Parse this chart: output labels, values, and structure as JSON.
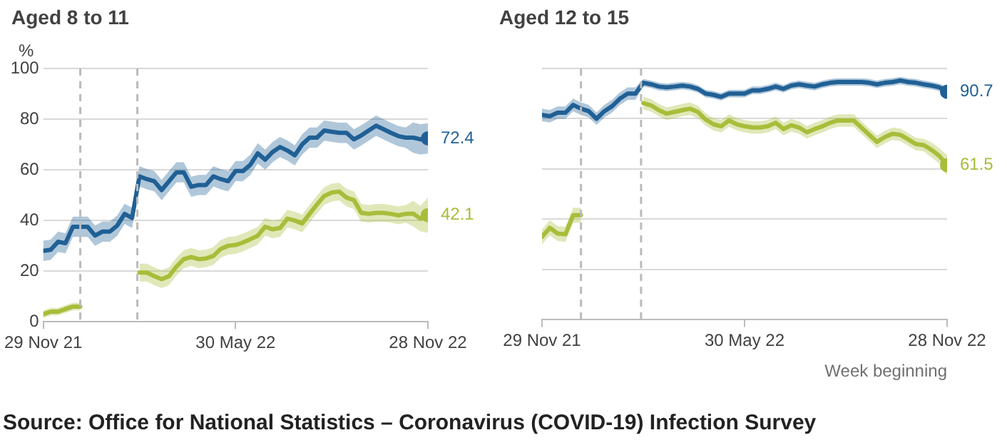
{
  "chart_data": [
    {
      "type": "line",
      "title": "Aged 8 to 11",
      "ylabel": "%",
      "grid": "y",
      "ylim": [
        0,
        100
      ],
      "yticks": [
        0,
        20,
        40,
        60,
        80,
        100
      ],
      "xlim": [
        "2021-11-29",
        "2022-11-28"
      ],
      "xticks": [
        {
          "value": "2021-11-29",
          "label": "29 Nov 21"
        },
        {
          "value": "2022-05-30",
          "label": "30 May 22"
        },
        {
          "value": "2022-11-28",
          "label": "28 Nov 22"
        }
      ],
      "x": [
        "2021-11-29",
        "2021-12-06",
        "2021-12-13",
        "2021-12-20",
        "2021-12-27",
        "2022-01-03",
        "2022-01-10",
        "2022-01-17",
        "2022-01-24",
        "2022-01-31",
        "2022-02-07",
        "2022-02-14",
        "2022-02-21",
        "2022-02-28",
        "2022-03-07",
        "2022-03-14",
        "2022-03-21",
        "2022-03-28",
        "2022-04-04",
        "2022-04-11",
        "2022-04-18",
        "2022-04-25",
        "2022-05-02",
        "2022-05-09",
        "2022-05-16",
        "2022-05-23",
        "2022-05-30",
        "2022-06-06",
        "2022-06-13",
        "2022-06-20",
        "2022-06-27",
        "2022-07-04",
        "2022-07-11",
        "2022-07-18",
        "2022-07-25",
        "2022-08-01",
        "2022-08-08",
        "2022-08-15",
        "2022-08-22",
        "2022-08-29",
        "2022-09-05",
        "2022-09-12",
        "2022-09-19",
        "2022-09-26",
        "2022-10-03",
        "2022-10-10",
        "2022-10-17",
        "2022-10-24",
        "2022-10-31",
        "2022-11-07",
        "2022-11-14",
        "2022-11-21",
        "2022-11-28"
      ],
      "series": [
        {
          "color": "#206095",
          "values": [
            28,
            28.4,
            31.6,
            31,
            37.5,
            37.5,
            37.5,
            34,
            35.6,
            35.6,
            38,
            42.6,
            41,
            57.4,
            56.3,
            55.5,
            52,
            55.5,
            59,
            59,
            53.3,
            54,
            54,
            57.4,
            56.3,
            55.5,
            59.5,
            59.5,
            62,
            66.5,
            64,
            67,
            69,
            67.6,
            65.7,
            70,
            72.7,
            72.7,
            75.5,
            75,
            74.6,
            74.6,
            72,
            73.6,
            75.5,
            77.4,
            76,
            74.6,
            73.3,
            72.7,
            72.7,
            72,
            72.4
          ],
          "lower": [
            24,
            24.4,
            27.6,
            27,
            33.5,
            33.5,
            33.5,
            30,
            31.6,
            31.6,
            34,
            38.6,
            37,
            53.4,
            52.3,
            51.5,
            48,
            51.5,
            55,
            55,
            49.3,
            50,
            50,
            53.4,
            52.3,
            51.5,
            55.5,
            55.5,
            58,
            62.5,
            60,
            63,
            65,
            63.6,
            61.7,
            66,
            68.7,
            68.7,
            71.5,
            71,
            70.6,
            70.6,
            68,
            69.6,
            71.5,
            73.4,
            72,
            70.6,
            69.3,
            68.7,
            66.7,
            66,
            66.4
          ],
          "upper": [
            32,
            32.4,
            35.6,
            35,
            41.5,
            41.5,
            41.5,
            38,
            39.6,
            39.6,
            42,
            46.6,
            45,
            61.4,
            60.3,
            59.5,
            56,
            59.5,
            63,
            63,
            57.3,
            58,
            58,
            61.4,
            60.3,
            59.5,
            63.5,
            63.5,
            66,
            70.5,
            68,
            71,
            73,
            71.6,
            69.7,
            74,
            76.7,
            76.7,
            79.5,
            79,
            78.6,
            78.6,
            76,
            77.6,
            79.5,
            81.4,
            80,
            78.6,
            77.3,
            76.7,
            78.7,
            78,
            78.4
          ]
        },
        {
          "color": "#a8bd3a",
          "values": [
            3,
            4,
            4,
            5,
            6,
            6,
            null,
            null,
            null,
            null,
            null,
            null,
            null,
            19.4,
            19.4,
            18,
            16.8,
            18,
            21.8,
            24.7,
            25.6,
            24.7,
            25,
            26,
            28.8,
            30,
            30.3,
            31.3,
            32.6,
            34,
            37.5,
            36.5,
            37,
            40.7,
            40,
            38.8,
            42.6,
            46.3,
            49.7,
            51,
            51.4,
            49,
            48,
            43,
            42.6,
            43,
            43,
            42.6,
            42,
            42.6,
            42.7,
            40.7,
            42.1
          ],
          "lower": [
            1.5,
            2.5,
            2.5,
            3.5,
            4.5,
            4.5,
            null,
            null,
            null,
            null,
            null,
            null,
            null,
            15.9,
            15.9,
            14.5,
            13.3,
            14.5,
            18.3,
            21.2,
            22.1,
            21.2,
            21.5,
            22.5,
            25.3,
            26.5,
            26.8,
            27.8,
            29.1,
            30.5,
            34,
            33,
            33.5,
            37.2,
            36.5,
            35.3,
            39.1,
            42.8,
            46.2,
            47.5,
            47.9,
            45.5,
            44.5,
            39.5,
            39.1,
            39.5,
            39.5,
            39.1,
            38.5,
            39.1,
            37.7,
            35.7,
            35.1
          ],
          "upper": [
            4.5,
            5.5,
            5.5,
            6.5,
            7.5,
            7.5,
            null,
            null,
            null,
            null,
            null,
            null,
            null,
            22.9,
            22.9,
            21.5,
            20.3,
            21.5,
            25.3,
            28.2,
            29.1,
            28.2,
            28.5,
            29.5,
            32.3,
            33.5,
            33.8,
            34.8,
            36.1,
            37.5,
            41,
            40,
            40.5,
            44.2,
            43.5,
            42.3,
            46.1,
            49.8,
            53.2,
            54.5,
            54.9,
            52.5,
            51.5,
            46.5,
            46.1,
            46.5,
            46.5,
            46.1,
            45.5,
            46.1,
            47.7,
            45.7,
            49.1
          ]
        }
      ],
      "ref_lines": [
        {
          "axis": "x",
          "value": "2022-01-03",
          "color": "#bbbbbb",
          "line_style": "dashed"
        },
        {
          "axis": "x",
          "value": "2022-02-26",
          "color": "#bbbbbb",
          "line_style": "dashed"
        }
      ],
      "annotations": [
        {
          "text": "72.4",
          "x": "2022-11-28",
          "y": 72.4
        },
        {
          "text": "42.1",
          "x": "2022-11-28",
          "y": 42.1
        }
      ]
    },
    {
      "type": "line",
      "title": "Aged 12 to 15",
      "xlabel": "Week beginning",
      "grid": "y",
      "tick_labels": "x",
      "ylim": [
        0,
        100
      ],
      "yticks": [
        0,
        20,
        40,
        60,
        80,
        100
      ],
      "xlim": [
        "2021-11-29",
        "2022-11-28"
      ],
      "xticks": [
        {
          "value": "2021-11-29",
          "label": "29 Nov 21"
        },
        {
          "value": "2022-05-30",
          "label": "30 May 22"
        },
        {
          "value": "2022-11-28",
          "label": "28 Nov 22"
        }
      ],
      "x": [
        "2021-11-29",
        "2021-12-06",
        "2021-12-13",
        "2021-12-20",
        "2021-12-27",
        "2022-01-03",
        "2022-01-10",
        "2022-01-17",
        "2022-01-24",
        "2022-01-31",
        "2022-02-07",
        "2022-02-14",
        "2022-02-21",
        "2022-02-28",
        "2022-03-07",
        "2022-03-14",
        "2022-03-21",
        "2022-03-28",
        "2022-04-04",
        "2022-04-11",
        "2022-04-18",
        "2022-04-25",
        "2022-05-02",
        "2022-05-09",
        "2022-05-16",
        "2022-05-23",
        "2022-05-30",
        "2022-06-06",
        "2022-06-13",
        "2022-06-20",
        "2022-06-27",
        "2022-07-04",
        "2022-07-11",
        "2022-07-18",
        "2022-07-25",
        "2022-08-01",
        "2022-08-08",
        "2022-08-15",
        "2022-08-22",
        "2022-08-29",
        "2022-09-05",
        "2022-09-12",
        "2022-09-19",
        "2022-09-26",
        "2022-10-03",
        "2022-10-10",
        "2022-10-17",
        "2022-10-24",
        "2022-10-31",
        "2022-11-07",
        "2022-11-14",
        "2022-11-21",
        "2022-11-28"
      ],
      "series": [
        {
          "color": "#206095",
          "values": [
            81.5,
            81,
            82.4,
            82.4,
            85.5,
            84,
            83,
            80,
            83,
            85,
            88,
            90,
            90,
            94.3,
            93.7,
            92.8,
            92.5,
            92.8,
            93.2,
            92.8,
            91.9,
            90,
            89.5,
            88.7,
            90,
            90,
            90,
            91.3,
            91.3,
            91.9,
            92.8,
            91.9,
            93.2,
            93.7,
            93.2,
            92.8,
            93.7,
            94.3,
            94.6,
            94.6,
            94.6,
            94.6,
            94.3,
            93.7,
            94.3,
            94.6,
            95.2,
            94.6,
            94.3,
            93.7,
            93.2,
            92.5,
            90.7
          ],
          "lower": [
            79,
            78.5,
            79.9,
            79.9,
            83,
            81.5,
            80.5,
            77.5,
            80.5,
            82.5,
            85.5,
            87.5,
            87.5,
            92.8,
            92.2,
            91.3,
            91,
            91.3,
            91.7,
            91.3,
            90.4,
            88.5,
            88,
            87.2,
            88.5,
            88.5,
            88.5,
            89.8,
            89.8,
            90.4,
            91.3,
            90.4,
            91.7,
            92.2,
            91.7,
            91.3,
            92.2,
            92.8,
            93.1,
            93.1,
            93.1,
            93.1,
            92.8,
            92.2,
            92.8,
            93.1,
            93.7,
            93.1,
            92.8,
            92.2,
            91.7,
            91,
            88.7
          ],
          "upper": [
            84,
            83.5,
            84.9,
            84.9,
            88,
            86.5,
            85.5,
            82.5,
            85.5,
            87.5,
            90.5,
            92.5,
            92.5,
            95.8,
            95.2,
            94.3,
            94,
            94.3,
            94.7,
            94.3,
            93.4,
            91.5,
            91,
            90.2,
            91.5,
            91.5,
            91.5,
            92.8,
            92.8,
            93.4,
            94.3,
            93.4,
            94.7,
            95.2,
            94.7,
            94.3,
            95.2,
            95.8,
            96.1,
            96.1,
            96.1,
            96.1,
            95.8,
            95.2,
            95.8,
            96.1,
            96.7,
            96.1,
            95.8,
            95.2,
            94.7,
            94,
            92.7
          ]
        },
        {
          "color": "#a8bd3a",
          "values": [
            33,
            36.6,
            34.3,
            34,
            41.6,
            41.6,
            null,
            null,
            null,
            null,
            null,
            null,
            null,
            86.2,
            85.3,
            83.4,
            82,
            82.7,
            83.4,
            84,
            82.7,
            79.7,
            77.8,
            77,
            79.3,
            77.8,
            77,
            76.5,
            76.5,
            77,
            78.4,
            75.9,
            77.4,
            76.5,
            74.6,
            75.9,
            77,
            78.4,
            79.3,
            79.3,
            79.3,
            76.5,
            73.6,
            70.8,
            72.7,
            74,
            73.6,
            71.8,
            69.9,
            69.5,
            67.6,
            65.2,
            61.5
          ],
          "lower": [
            30,
            33.6,
            31.3,
            31,
            38.6,
            38.6,
            null,
            null,
            null,
            null,
            null,
            null,
            null,
            83.7,
            82.8,
            80.9,
            79.5,
            80.2,
            80.9,
            81.5,
            80.2,
            77.2,
            75.3,
            74.5,
            76.8,
            75.3,
            74.5,
            74,
            74,
            74.5,
            75.9,
            73.4,
            74.9,
            74,
            72.1,
            73.4,
            74.5,
            75.9,
            76.8,
            76.8,
            76.8,
            74,
            71.1,
            68.3,
            70.2,
            71.5,
            71.1,
            69.3,
            67.4,
            67,
            64.6,
            62.2,
            57.5
          ],
          "upper": [
            36,
            39.6,
            37.3,
            37,
            44.6,
            44.6,
            null,
            null,
            null,
            null,
            null,
            null,
            null,
            88.7,
            87.8,
            85.9,
            84.5,
            85.2,
            85.9,
            86.5,
            85.2,
            82.2,
            80.3,
            79.5,
            81.8,
            80.3,
            79.5,
            79,
            79,
            79.5,
            80.9,
            78.4,
            79.9,
            79,
            77.1,
            78.4,
            79.5,
            80.9,
            81.8,
            81.8,
            81.8,
            79,
            76.1,
            73.3,
            75.2,
            76.5,
            76.1,
            74.3,
            72.4,
            72,
            70.6,
            68.2,
            65.5
          ]
        }
      ],
      "ref_lines": [
        {
          "axis": "x",
          "value": "2022-01-03",
          "color": "#bbbbbb",
          "line_style": "dashed"
        },
        {
          "axis": "x",
          "value": "2022-02-26",
          "color": "#bbbbbb",
          "line_style": "dashed"
        }
      ],
      "annotations": [
        {
          "text": "90.7",
          "x": "2022-11-28",
          "y": 90.7
        },
        {
          "text": "61.5",
          "x": "2022-11-28",
          "y": 61.5
        },
        "Source: Office for National Statistics – Coronavirus (COVID-19) Infection Survey"
      ]
    }
  ]
}
